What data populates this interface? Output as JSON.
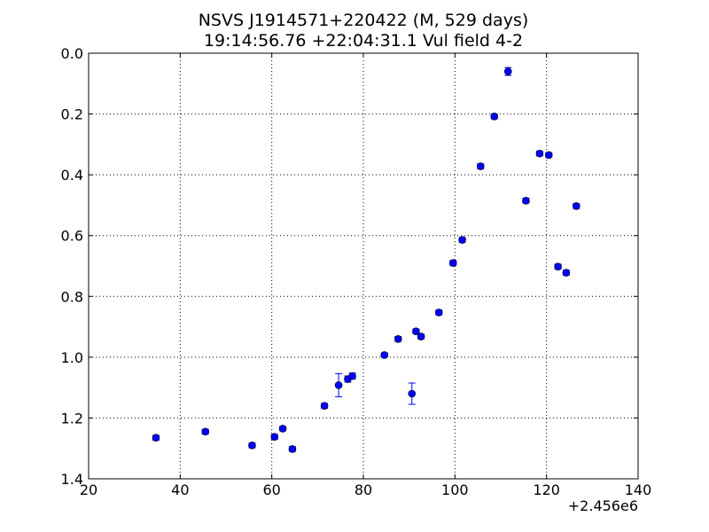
{
  "chart_data": {
    "type": "scatter",
    "title": "NSVS J1914571+220422 (M, 529 days)",
    "subtitle": "19:14:56.76 +22:04:31.1 Vul field 4-2",
    "xlabel": "",
    "ylabel": "",
    "x_offset_label": "+2.456e6",
    "xlim": [
      20,
      140
    ],
    "ylim": [
      1.4,
      0.0
    ],
    "y_inverted": true,
    "grid": true,
    "x_ticks": [
      "20",
      "40",
      "60",
      "80",
      "100",
      "120",
      "140"
    ],
    "y_ticks": [
      "0.0",
      "0.2",
      "0.4",
      "0.6",
      "0.8",
      "1.0",
      "1.2",
      "1.4"
    ],
    "marker_color": "#0000ff",
    "points": [
      {
        "x": 34.7,
        "y": 1.265,
        "err": 0.008
      },
      {
        "x": 45.5,
        "y": 1.245,
        "err": 0.008
      },
      {
        "x": 55.7,
        "y": 1.29,
        "err": 0.008
      },
      {
        "x": 60.6,
        "y": 1.262,
        "err": 0.008
      },
      {
        "x": 62.4,
        "y": 1.235,
        "err": 0.007
      },
      {
        "x": 64.5,
        "y": 1.302,
        "err": 0.008
      },
      {
        "x": 71.5,
        "y": 1.16,
        "err": 0.008
      },
      {
        "x": 74.6,
        "y": 1.092,
        "err": 0.038
      },
      {
        "x": 76.6,
        "y": 1.072,
        "err": 0.01
      },
      {
        "x": 77.6,
        "y": 1.062,
        "err": 0.01
      },
      {
        "x": 84.6,
        "y": 0.993,
        "err": 0.007
      },
      {
        "x": 87.6,
        "y": 0.94,
        "err": 0.008
      },
      {
        "x": 90.6,
        "y": 1.12,
        "err": 0.035
      },
      {
        "x": 91.5,
        "y": 0.915,
        "err": 0.008
      },
      {
        "x": 92.6,
        "y": 0.932,
        "err": 0.008
      },
      {
        "x": 96.5,
        "y": 0.853,
        "err": 0.008
      },
      {
        "x": 99.6,
        "y": 0.69,
        "err": 0.008
      },
      {
        "x": 101.6,
        "y": 0.614,
        "err": 0.008
      },
      {
        "x": 105.6,
        "y": 0.372,
        "err": 0.008
      },
      {
        "x": 108.6,
        "y": 0.208,
        "err": 0.008
      },
      {
        "x": 111.6,
        "y": 0.06,
        "err": 0.013
      },
      {
        "x": 115.5,
        "y": 0.485,
        "err": 0.008
      },
      {
        "x": 118.5,
        "y": 0.33,
        "err": 0.008
      },
      {
        "x": 120.5,
        "y": 0.335,
        "err": 0.008
      },
      {
        "x": 122.5,
        "y": 0.702,
        "err": 0.008
      },
      {
        "x": 124.3,
        "y": 0.722,
        "err": 0.008
      },
      {
        "x": 126.5,
        "y": 0.503,
        "err": 0.008
      }
    ]
  }
}
